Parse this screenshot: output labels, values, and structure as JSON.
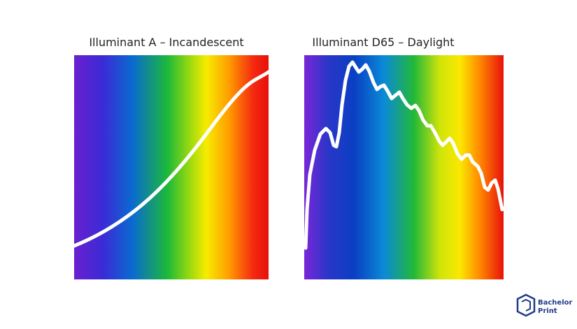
{
  "panels": [
    {
      "title": "Illuminant A – Incandescent"
    },
    {
      "title": "Illuminant D65 – Daylight"
    }
  ],
  "logo": {
    "line1": "Bachelor",
    "line2": "Print"
  }
}
